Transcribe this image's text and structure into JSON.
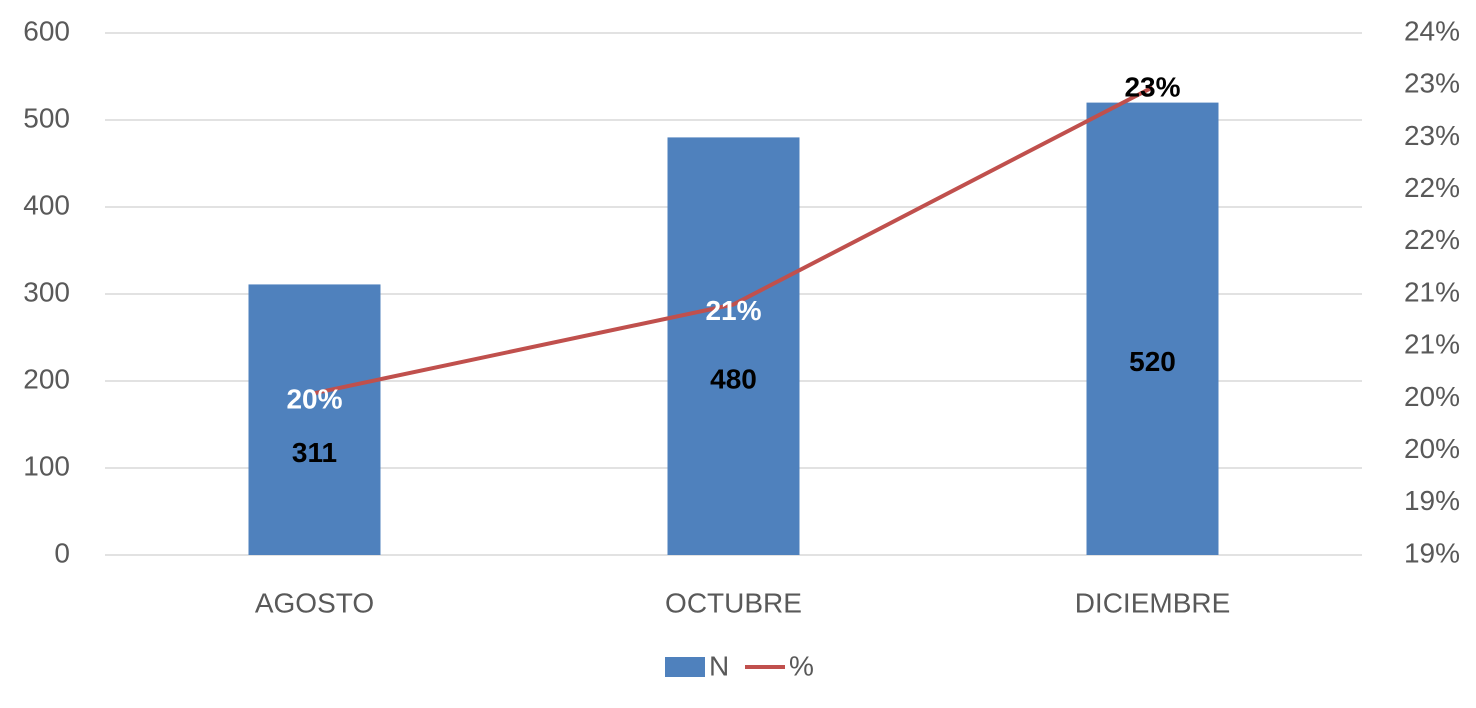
{
  "chart_data": {
    "type": "bar_line",
    "categories": [
      "AGOSTO",
      "OCTUBRE",
      "DICIEMBRE"
    ],
    "series": [
      {
        "name": "N",
        "type": "bar",
        "color": "#4f81bd",
        "values": [
          311,
          480,
          520
        ]
      },
      {
        "name": "%",
        "type": "line",
        "axis": "y2",
        "color": "#c0504d",
        "values": [
          20.05,
          20.9,
          22.98
        ],
        "value_labels": [
          "20%",
          "21%",
          "23%"
        ]
      }
    ],
    "ylim": [
      0,
      600
    ],
    "yticks": [
      0,
      100,
      200,
      300,
      400,
      500,
      600
    ],
    "y2lim": [
      18.5,
      23.5
    ],
    "y2ticks": [
      {
        "value": 18.5,
        "label": "19%"
      },
      {
        "value": 19,
        "label": "19%"
      },
      {
        "value": 19.5,
        "label": "20%"
      },
      {
        "value": 20,
        "label": "20%"
      },
      {
        "value": 20.5,
        "label": "21%"
      },
      {
        "value": 21,
        "label": "21%"
      },
      {
        "value": 21.5,
        "label": "22%"
      },
      {
        "value": 22,
        "label": "22%"
      },
      {
        "value": 22.5,
        "label": "23%"
      },
      {
        "value": 23,
        "label": "23%"
      },
      {
        "value": 23.5,
        "label": "24%"
      }
    ],
    "grid": true,
    "legend": "bottom"
  }
}
